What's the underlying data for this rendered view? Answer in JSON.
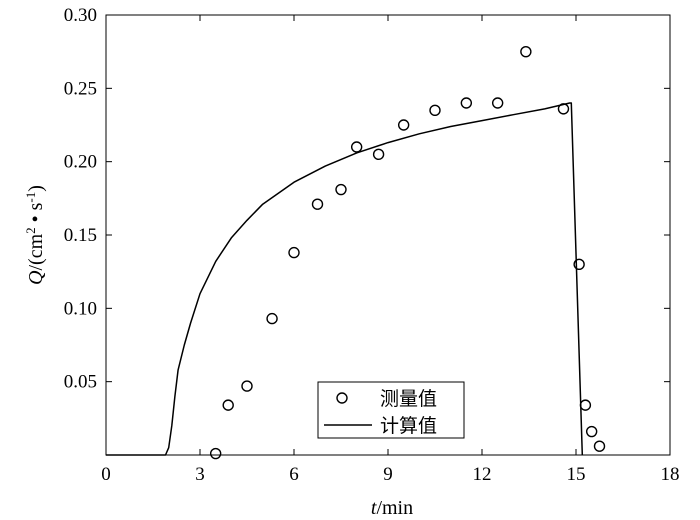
{
  "chart_data": {
    "type": "line",
    "title": "",
    "xlabel": {
      "italic": "t",
      "rest": "/min"
    },
    "ylabel": {
      "italic": "Q",
      "rest": "/(cm",
      "sup1": "2",
      "mid": " • s",
      "sup2": "-1",
      "end": ")"
    },
    "xlim": [
      0,
      18
    ],
    "ylim": [
      0,
      0.3
    ],
    "xticks": [
      0,
      3,
      6,
      9,
      12,
      15,
      18
    ],
    "xtick_labels": [
      "0",
      "3",
      "6",
      "9",
      "12",
      "15",
      "18"
    ],
    "yticks": [
      0.05,
      0.1,
      0.15,
      0.2,
      0.25,
      0.3
    ],
    "ytick_labels": [
      "0.05",
      "0.10",
      "0.15",
      "0.20",
      "0.25",
      "0.30"
    ],
    "grid": false,
    "legend_position": "bottom-center",
    "series": [
      {
        "name": "测量值",
        "type": "scatter",
        "marker": "circle",
        "x": [
          3.5,
          3.9,
          4.5,
          5.3,
          6.0,
          6.75,
          7.5,
          8.0,
          8.7,
          9.5,
          10.5,
          11.5,
          12.5,
          13.4,
          14.6,
          15.1,
          15.3,
          15.5,
          15.75
        ],
        "y": [
          0.001,
          0.034,
          0.047,
          0.093,
          0.138,
          0.171,
          0.181,
          0.21,
          0.205,
          0.225,
          0.235,
          0.24,
          0.24,
          0.275,
          0.236,
          0.13,
          0.034,
          0.016,
          0.006
        ]
      },
      {
        "name": "计算值",
        "type": "line",
        "x": [
          0,
          1.9,
          2.0,
          2.1,
          2.2,
          2.3,
          2.5,
          2.7,
          3.0,
          3.5,
          4.0,
          4.5,
          5.0,
          6.0,
          7.0,
          8.0,
          9.0,
          10.0,
          11.0,
          12.0,
          13.0,
          14.0,
          14.8,
          14.85,
          15.2
        ],
        "y": [
          0,
          0,
          0.005,
          0.02,
          0.04,
          0.058,
          0.075,
          0.09,
          0.11,
          0.132,
          0.148,
          0.16,
          0.171,
          0.186,
          0.197,
          0.206,
          0.213,
          0.219,
          0.224,
          0.228,
          0.232,
          0.236,
          0.24,
          0.24,
          0
        ]
      }
    ]
  }
}
